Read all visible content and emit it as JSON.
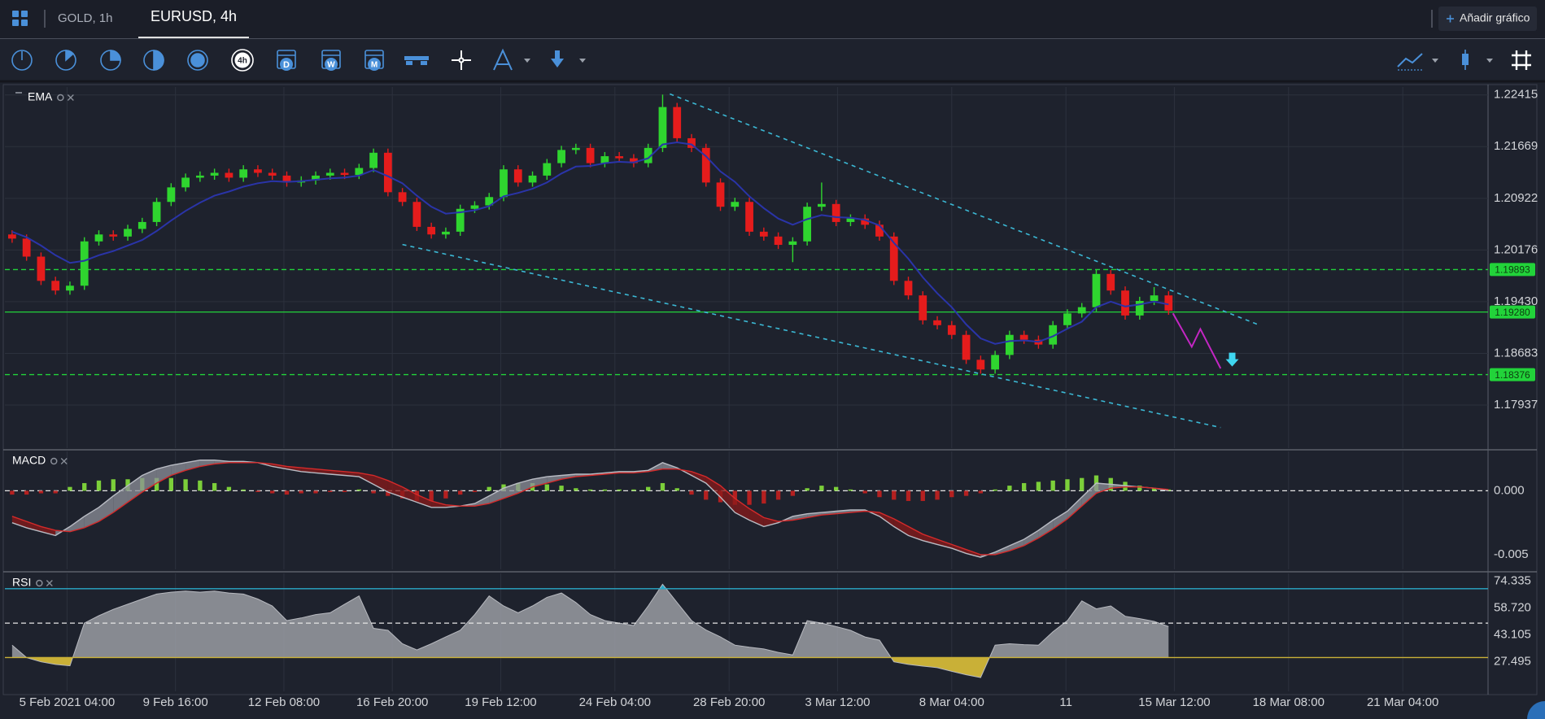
{
  "tabs": [
    "GOLD, 1h",
    "EURUSD, 4h"
  ],
  "add_chart": "Añadir gráfico",
  "toolbar": {
    "timeframe": "4h",
    "periods": [
      "D",
      "W",
      "M"
    ]
  },
  "chart_data": [
    {
      "type": "candlestick",
      "title": "EMA",
      "up_color": "#2fd52f",
      "down_color": "#e51c1c",
      "xlim": [
        -0.5,
        102.1
      ],
      "ylim": [
        1.17314,
        1.22529
      ],
      "yticks": [
        1.22415,
        1.21669,
        1.20922,
        1.20176,
        {
          "value": 1.1943,
          "label": "1.19430"
        },
        1.18683,
        1.17937
      ],
      "grid": true,
      "open": [
        1.204,
        1.2034,
        1.2008,
        1.1973,
        1.1959,
        1.1966,
        1.203,
        1.204,
        1.2037,
        1.2048,
        1.2058,
        1.2087,
        1.2108,
        1.2122,
        1.2125,
        1.2129,
        1.2122,
        1.2134,
        1.2129,
        1.2125,
        1.2115,
        1.2118,
        1.2125,
        1.2129,
        1.2126,
        1.2136,
        1.2158,
        1.2101,
        1.2087,
        1.2051,
        1.204,
        1.2044,
        1.2077,
        1.2082,
        1.2094,
        1.2134,
        1.2115,
        1.2125,
        1.2143,
        1.2162,
        1.2165,
        1.2143,
        1.2153,
        1.215,
        1.2143,
        1.2165,
        1.2224,
        1.2179,
        1.2165,
        1.2115,
        1.208,
        1.2087,
        1.2044,
        1.2037,
        1.2025,
        1.203,
        1.208,
        1.2084,
        1.2058,
        1.2063,
        1.2054,
        1.2037,
        1.1973,
        1.1952,
        1.1916,
        1.1909,
        1.1895,
        1.1859,
        1.1845,
        1.1866,
        1.1895,
        1.1888,
        1.1881,
        1.1909,
        1.1926,
        1.1935,
        1.1983,
        1.1959,
        1.1923,
        1.1944,
        1.1952
      ],
      "high": [
        1.2046,
        1.204,
        1.2014,
        1.1979,
        1.1972,
        1.2036,
        1.2046,
        1.2046,
        1.2054,
        1.2064,
        1.2093,
        1.2114,
        1.2128,
        1.2131,
        1.2135,
        1.2135,
        1.214,
        1.214,
        1.2135,
        1.2131,
        1.2124,
        1.2131,
        1.2135,
        1.2135,
        1.2142,
        1.2164,
        1.2164,
        1.2107,
        1.2093,
        1.2057,
        1.205,
        1.2083,
        1.2088,
        1.21,
        1.214,
        1.214,
        1.2131,
        1.2149,
        1.2168,
        1.2171,
        1.2171,
        1.2159,
        1.2159,
        1.2156,
        1.2171,
        1.2242,
        1.223,
        1.2185,
        1.2171,
        1.2121,
        1.2093,
        1.2093,
        1.205,
        1.2043,
        1.2036,
        1.2086,
        1.2115,
        1.209,
        1.2069,
        1.2069,
        1.206,
        1.2043,
        1.1979,
        1.1958,
        1.1922,
        1.1915,
        1.1901,
        1.1865,
        1.1872,
        1.1901,
        1.1901,
        1.1894,
        1.1915,
        1.1932,
        1.1941,
        1.1989,
        1.1989,
        1.1965,
        1.195,
        1.1964,
        1.1958
      ],
      "low": [
        1.2028,
        1.2002,
        1.1967,
        1.1953,
        1.1953,
        1.196,
        1.2024,
        1.2031,
        1.2031,
        1.2042,
        1.2052,
        1.2081,
        1.2102,
        1.2116,
        1.2119,
        1.2116,
        1.2116,
        1.2123,
        1.2119,
        1.2109,
        1.2109,
        1.2112,
        1.2119,
        1.212,
        1.212,
        1.213,
        1.2095,
        1.2081,
        1.2045,
        1.2034,
        1.2034,
        1.2038,
        1.2071,
        1.2076,
        1.2088,
        1.2109,
        1.2109,
        1.2119,
        1.2137,
        1.2156,
        1.2137,
        1.2137,
        1.2144,
        1.2137,
        1.2137,
        1.2159,
        1.2173,
        1.2159,
        1.2109,
        1.2074,
        1.2074,
        1.2038,
        1.2031,
        1.2019,
        1.2,
        1.2024,
        1.2074,
        1.2052,
        1.2052,
        1.2048,
        1.2031,
        1.1967,
        1.1946,
        1.191,
        1.1903,
        1.1889,
        1.1853,
        1.1839,
        1.1839,
        1.186,
        1.1882,
        1.1875,
        1.1875,
        1.1903,
        1.192,
        1.1929,
        1.1953,
        1.1917,
        1.1917,
        1.1938,
        1.1924
      ],
      "close": [
        1.2034,
        1.2008,
        1.1973,
        1.1959,
        1.1966,
        1.203,
        1.204,
        1.2037,
        1.2048,
        1.2058,
        1.2087,
        1.2108,
        1.2122,
        1.2125,
        1.2129,
        1.2122,
        1.2134,
        1.2129,
        1.2125,
        1.2115,
        1.2118,
        1.2125,
        1.2129,
        1.2126,
        1.2136,
        1.2158,
        1.2101,
        1.2087,
        1.2051,
        1.204,
        1.2044,
        1.2077,
        1.2082,
        1.2094,
        1.2134,
        1.2115,
        1.2125,
        1.2143,
        1.2162,
        1.2165,
        1.2143,
        1.2153,
        1.215,
        1.2143,
        1.2165,
        1.2224,
        1.2179,
        1.2165,
        1.2115,
        1.208,
        1.2087,
        1.2044,
        1.2037,
        1.2025,
        1.203,
        1.208,
        1.2084,
        1.2058,
        1.2063,
        1.2054,
        1.2037,
        1.1973,
        1.1952,
        1.1916,
        1.1909,
        1.1895,
        1.1859,
        1.1845,
        1.1866,
        1.1895,
        1.1888,
        1.1881,
        1.1909,
        1.1926,
        1.1935,
        1.1983,
        1.1959,
        1.1923,
        1.1944,
        1.1952,
        1.193
      ],
      "ema": {
        "color": "#2a34a8",
        "values": [
          1.2044,
          1.2036,
          1.2024,
          1.201,
          1.1999,
          1.2002,
          1.201,
          1.2016,
          1.2024,
          1.2032,
          1.2045,
          1.206,
          1.2074,
          1.2086,
          1.2096,
          1.2102,
          1.2109,
          1.2114,
          1.2117,
          1.2116,
          1.2117,
          1.2119,
          1.2121,
          1.2122,
          1.2125,
          1.2133,
          1.2124,
          1.2114,
          1.2096,
          1.208,
          1.207,
          1.2072,
          1.2075,
          1.2081,
          1.2095,
          1.21,
          1.2106,
          1.2115,
          1.2128,
          1.2138,
          1.2139,
          1.2143,
          1.2145,
          1.2144,
          1.215,
          1.217,
          1.2173,
          1.217,
          1.2153,
          1.2131,
          1.2116,
          1.2095,
          1.2078,
          1.2063,
          1.2054,
          1.2062,
          1.2068,
          1.2065,
          1.2064,
          1.2061,
          1.2053,
          1.2028,
          1.2005,
          1.1978,
          1.1955,
          1.1935,
          1.191,
          1.189,
          1.1882,
          1.1886,
          1.1887,
          1.1885,
          1.1893,
          1.1904,
          1.1914,
          1.1935,
          1.1943,
          1.1936,
          1.1939,
          1.1943,
          1.1939
        ]
      },
      "levels": [
        {
          "value": 1.19893,
          "label": "1.19893",
          "dashed": true,
          "color": "#22d33a"
        },
        {
          "value": 1.1928,
          "label": "1.19280",
          "dashed": false,
          "color": "#22d33a"
        },
        {
          "value": 1.18376,
          "label": "1.18376",
          "dashed": true,
          "color": "#22d33a"
        }
      ],
      "trendlines": [
        {
          "color": "#3bb8d4",
          "points": [
            [
              45.5,
              1.22429
            ],
            [
              86.3,
              1.1909
            ]
          ]
        },
        {
          "color": "#3bb8d4",
          "points": [
            [
              27.0,
              1.20255
            ],
            [
              83.6,
              1.17612
            ]
          ]
        }
      ],
      "projection": {
        "color": "#c326c3",
        "points": [
          [
            80.3,
            1.1926
          ],
          [
            81.6,
            1.18777
          ],
          [
            82.2,
            1.19033
          ],
          [
            83.6,
            1.18465
          ]
        ]
      },
      "arrow": {
        "color": "#3fd6f0",
        "point": [
          84.4,
          1.18564
        ]
      }
    },
    {
      "type": "macd",
      "title": "MACD",
      "xlim": [
        -0.5,
        102.1
      ],
      "ylim": [
        -0.00615,
        0.00308
      ],
      "yticks": [
        {
          "value": 0,
          "label": "0.000"
        },
        {
          "value": -0.005,
          "label": "-0.005"
        }
      ],
      "macd": {
        "color": "#b9bcc4",
        "values": [
          -0.0025,
          -0.0029,
          -0.0032,
          -0.0035,
          -0.0028,
          -0.002,
          -0.0013,
          -0.0004,
          0.0004,
          0.0012,
          0.0017,
          0.002,
          0.0022,
          0.0024,
          0.0024,
          0.0023,
          0.0023,
          0.0022,
          0.0019,
          0.0017,
          0.0015,
          0.0014,
          0.0013,
          0.0012,
          0.0011,
          0.0005,
          -0.0001,
          -0.0005,
          -0.0009,
          -0.0013,
          -0.0013,
          -0.0012,
          -0.001,
          -0.0004,
          0.0002,
          0.0006,
          0.0009,
          0.0011,
          0.0012,
          0.0013,
          0.0013,
          0.0014,
          0.0015,
          0.0015,
          0.0016,
          0.0022,
          0.0018,
          0.0012,
          0.0006,
          -0.0005,
          -0.0017,
          -0.0023,
          -0.0028,
          -0.0025,
          -0.002,
          -0.0018,
          -0.0017,
          -0.0016,
          -0.0015,
          -0.0015,
          -0.002,
          -0.0028,
          -0.0035,
          -0.0039,
          -0.0042,
          -0.0045,
          -0.0049,
          -0.0052,
          -0.0048,
          -0.0043,
          -0.0038,
          -0.0031,
          -0.0023,
          -0.0016,
          -0.0005,
          0.0006,
          0.0005,
          0.0004,
          0.0003,
          0.0002,
          0.0
        ]
      },
      "signal": {
        "color": "#d42a2a",
        "values": [
          -0.002,
          -0.0024,
          -0.0028,
          -0.0031,
          -0.0032,
          -0.0029,
          -0.0024,
          -0.0017,
          -0.0009,
          -0.0001,
          0.0006,
          0.0012,
          0.0016,
          0.0019,
          0.0021,
          0.0022,
          0.0022,
          0.0022,
          0.0021,
          0.0019,
          0.0018,
          0.0017,
          0.0016,
          0.0015,
          0.0014,
          0.0012,
          0.0008,
          0.0003,
          -0.0003,
          -0.0008,
          -0.0011,
          -0.0012,
          -0.0012,
          -0.001,
          -0.0006,
          -0.0002,
          0.0003,
          0.0006,
          0.0009,
          0.0011,
          0.0012,
          0.0013,
          0.0014,
          0.0014,
          0.0015,
          0.0017,
          0.0017,
          0.0015,
          0.0011,
          0.0004,
          -0.0006,
          -0.0014,
          -0.0021,
          -0.0024,
          -0.0023,
          -0.0021,
          -0.0019,
          -0.0018,
          -0.0017,
          -0.0016,
          -0.0017,
          -0.0022,
          -0.0028,
          -0.0034,
          -0.0038,
          -0.0042,
          -0.0046,
          -0.005,
          -0.005,
          -0.0047,
          -0.0043,
          -0.0037,
          -0.003,
          -0.0022,
          -0.0012,
          -0.0002,
          0.0002,
          0.0003,
          0.0003,
          0.0002,
          0.0001
        ]
      },
      "fill_colors": {
        "above": "#8d9099",
        "below": "#8a1a1a"
      },
      "histogram": {
        "up_color": "#7ccf3a",
        "down_color": "#b42020",
        "values": [
          -0.0003,
          -0.0003,
          -0.0002,
          -0.0002,
          0.0003,
          0.0006,
          0.0008,
          0.0009,
          0.0009,
          0.001,
          0.001,
          0.001,
          0.0009,
          0.0008,
          0.0006,
          0.0003,
          0.0001,
          -0.0001,
          -0.0002,
          -0.0003,
          -0.0002,
          -0.0002,
          -0.0001,
          -0.0001,
          0.0001,
          -0.0002,
          -0.0004,
          -0.0006,
          -0.0008,
          -0.0008,
          -0.0006,
          -0.0003,
          -0.0001,
          0.0003,
          0.0005,
          0.0006,
          0.0006,
          0.0005,
          0.0004,
          0.0002,
          0.0001,
          0.0001,
          0.0001,
          0.0001,
          0.0003,
          0.0006,
          0.0002,
          -0.0003,
          -0.0007,
          -0.0009,
          -0.0011,
          -0.0011,
          -0.001,
          -0.0007,
          -0.0004,
          0.0002,
          0.0004,
          0.0003,
          0.0001,
          -0.0002,
          -0.0005,
          -0.0007,
          -0.0008,
          -0.0008,
          -0.0007,
          -0.0005,
          -0.0004,
          -0.0002,
          0.0001,
          0.0004,
          0.0006,
          0.0007,
          0.0008,
          0.0009,
          0.001,
          0.0012,
          0.001,
          0.0007,
          0.0004,
          0.0002,
          0.0001
        ]
      }
    },
    {
      "type": "rsi",
      "title": "RSI",
      "xlim": [
        -0.5,
        102.1
      ],
      "ylim": [
        10.36,
        78.9
      ],
      "yticks": [
        74.335,
        {
          "value": 58.72,
          "label": "58.720"
        },
        43.105,
        27.495
      ],
      "xticks": [
        {
          "value": 3.8,
          "label": "5 Feb 2021 04:00"
        },
        {
          "value": 11.3,
          "label": "9 Feb 16:00"
        },
        {
          "value": 18.8,
          "label": "12 Feb 08:00"
        },
        {
          "value": 26.3,
          "label": "16 Feb 20:00"
        },
        {
          "value": 33.8,
          "label": "19 Feb 12:00"
        },
        {
          "value": 41.7,
          "label": "24 Feb 04:00"
        },
        {
          "value": 49.6,
          "label": "28 Feb 20:00"
        },
        {
          "value": 57.1,
          "label": "3 Mar 12:00"
        },
        {
          "value": 65.0,
          "label": "8 Mar 04:00"
        },
        {
          "value": 72.9,
          "label": "11"
        },
        {
          "value": 80.4,
          "label": "15 Mar 12:00"
        },
        {
          "value": 88.3,
          "label": "18 Mar 08:00"
        },
        {
          "value": 96.2,
          "label": "21 Mar 04:00"
        }
      ],
      "color": "#9a9ca3",
      "values": [
        37.2,
        30,
        27.5,
        26,
        25.2,
        50,
        54.3,
        58,
        61,
        64,
        66.9,
        68,
        68.6,
        68,
        68.6,
        67.5,
        66.9,
        64,
        60,
        51.5,
        53,
        55,
        56,
        61,
        65.8,
        47,
        45.8,
        38,
        34.4,
        38,
        42,
        45.8,
        55,
        65.8,
        60,
        56,
        60,
        65,
        67.5,
        62,
        55,
        51.5,
        50,
        48.6,
        60,
        72.6,
        62,
        51.5,
        46,
        42,
        37.2,
        36,
        35,
        33,
        31.5,
        51.5,
        50,
        48,
        45.8,
        42,
        40.1,
        27.5,
        26,
        25,
        24.1,
        22,
        20,
        18.4,
        37.2,
        38,
        37.5,
        37.2,
        45,
        51.5,
        62.9,
        58.3,
        60,
        54,
        52.6,
        51,
        48
      ],
      "overbought": {
        "value": 70,
        "color": "#2aa9c9"
      },
      "midline": {
        "value": 50,
        "color": "#e6e6e6"
      },
      "oversold": {
        "value": 30,
        "color": "#c9b037"
      }
    }
  ]
}
